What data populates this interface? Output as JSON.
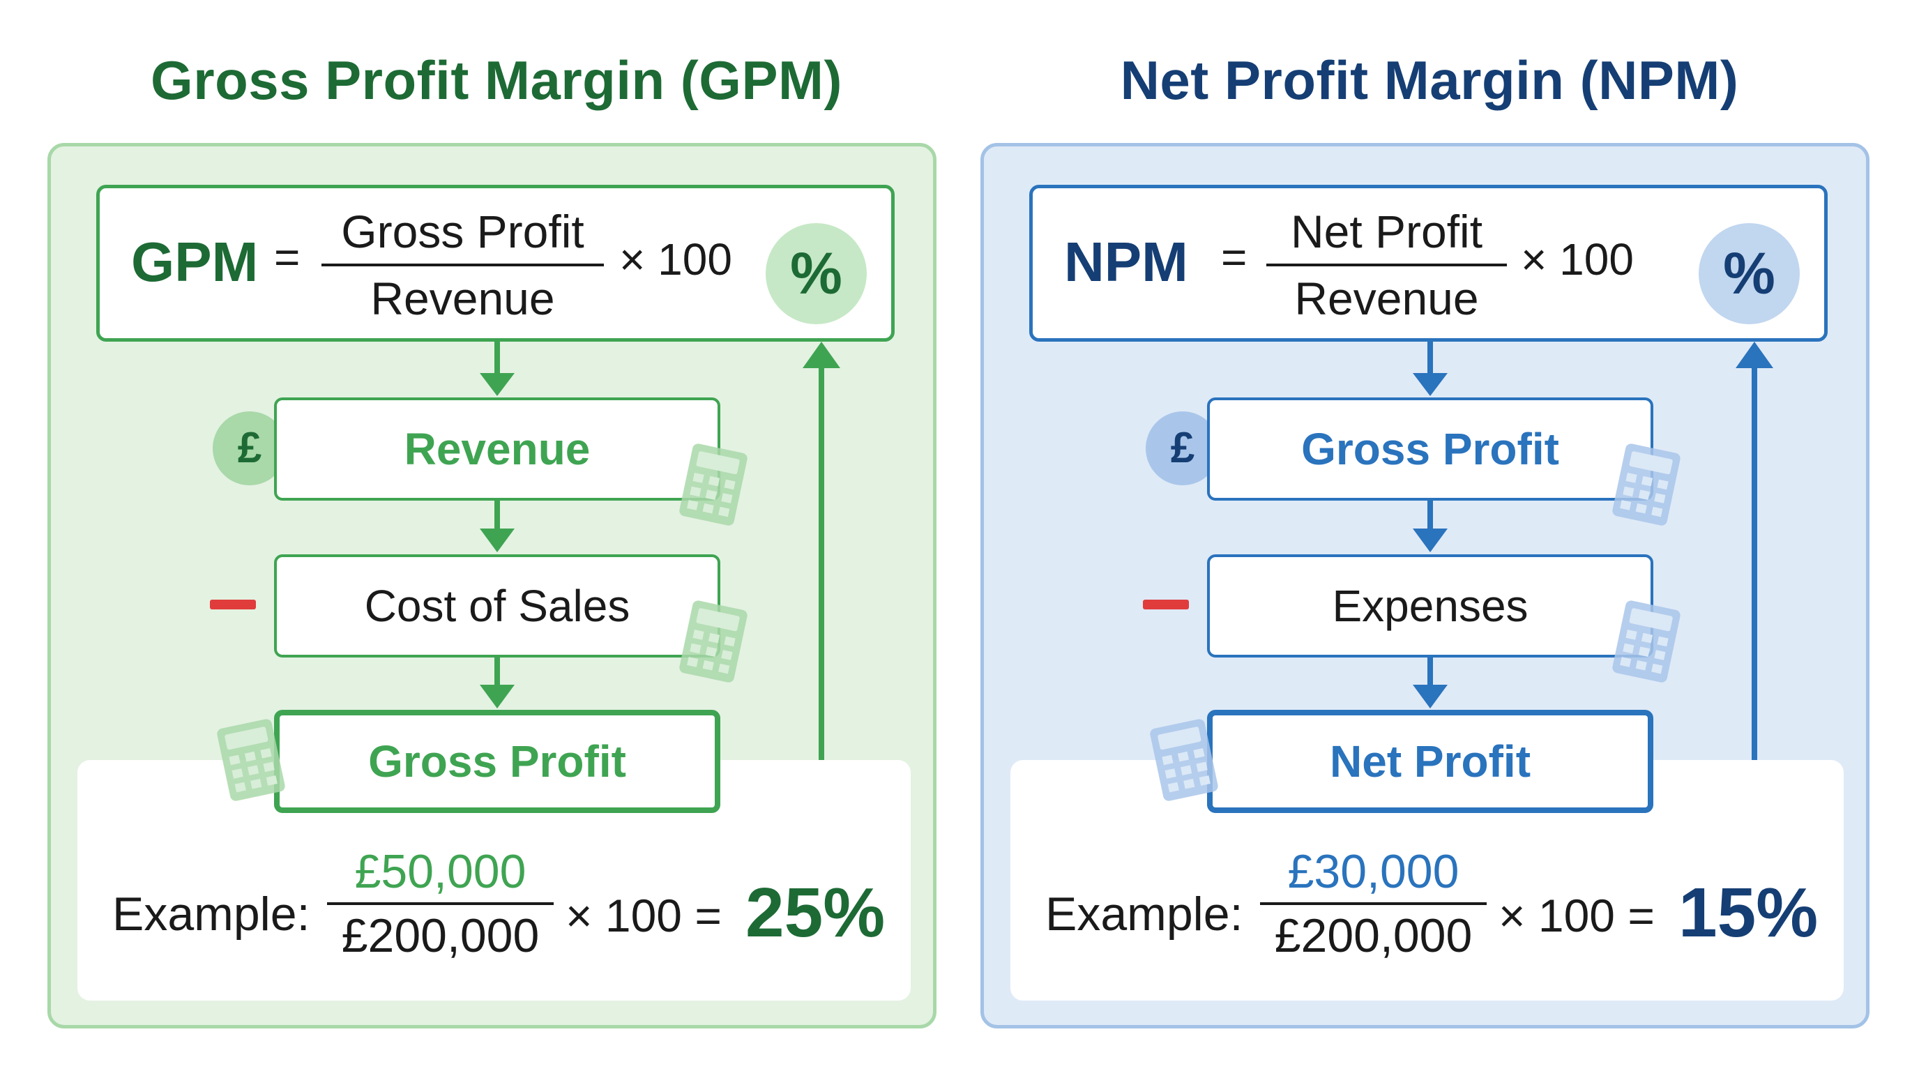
{
  "gpm": {
    "title": "Gross Profit Margin (GPM)",
    "formula": {
      "lhs": "GPM",
      "equals": "=",
      "numerator": "Gross Profit",
      "denominator": "Revenue",
      "multiplier": "× 100",
      "percent_symbol": "%"
    },
    "currency_symbol": "£",
    "minus_sign": "−",
    "steps": [
      "Revenue",
      "Cost of Sales",
      "Gross Profit"
    ],
    "example": {
      "label": "Example:",
      "numerator": "£50,000",
      "denominator": "£200,000",
      "multiplier": "× 100 =",
      "result": "25%"
    },
    "colors": {
      "primary": "#3fa452",
      "dark": "#1d6a35",
      "panel_bg": "#e4f2e2"
    }
  },
  "npm": {
    "title": "Net Profit Margin (NPM)",
    "formula": {
      "lhs": "NPM",
      "equals": "=",
      "numerator": "Net Profit",
      "denominator": "Revenue",
      "multiplier": "× 100",
      "percent_symbol": "%"
    },
    "currency_symbol": "£",
    "minus_sign": "−",
    "steps": [
      "Gross Profit",
      "Expenses",
      "Net Profit"
    ],
    "example": {
      "label": "Example:",
      "numerator": "£30,000",
      "denominator": "£200,000",
      "multiplier": "× 100 =",
      "result": "15%"
    },
    "colors": {
      "primary": "#2a73bd",
      "dark": "#153e74",
      "panel_bg": "#dfeaf7"
    }
  },
  "icons": {
    "currency": "pound-icon",
    "calculator": "calculator-icon",
    "percent": "percent-icon",
    "minus": "minus-icon"
  }
}
